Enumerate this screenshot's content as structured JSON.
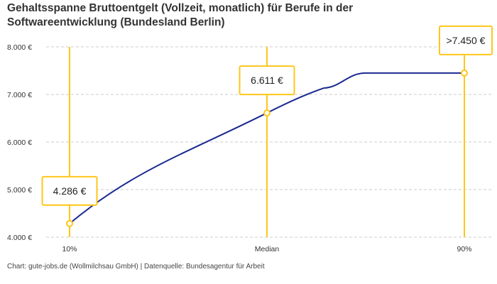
{
  "chart_data": {
    "type": "line",
    "title": "Gehaltsspanne Bruttoentgelt (Vollzeit, monatlich) für Berufe in der Softwareentwicklung (Bundesland Berlin)",
    "categories": [
      "10%",
      "Median",
      "90%"
    ],
    "values": [
      4286,
      6611,
      7450
    ],
    "data_labels": [
      "4.286 €",
      "6.611 €",
      ">7.450 €"
    ],
    "ylim": [
      4000,
      8000
    ],
    "yticks": [
      4000,
      5000,
      6000,
      7000,
      8000
    ],
    "ytick_labels": [
      "4.000 €",
      "5.000 €",
      "6.000 €",
      "7.000 €",
      "8.000 €"
    ],
    "grid": "horizontal dashed",
    "legend": "none",
    "line_color": "#1b2a8f",
    "marker_color": "#ffc61a"
  },
  "footer": "Chart: gute-jobs.de (Wollmilchsau GmbH) | Datenquelle: Bundesagentur für Arbeit"
}
